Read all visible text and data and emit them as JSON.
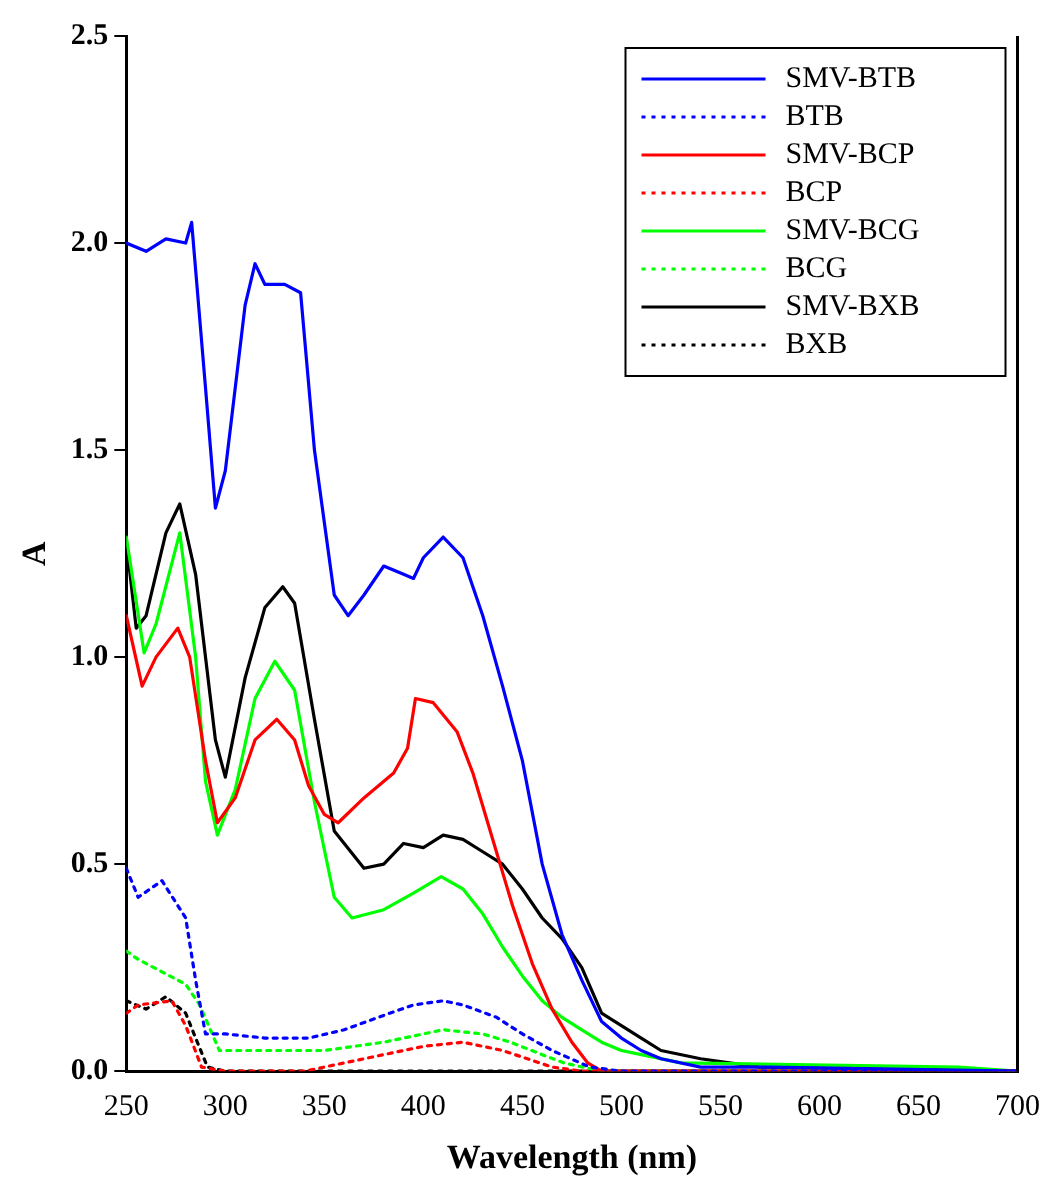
{
  "chart_data": {
    "type": "line",
    "xlabel": "Wavelength (nm)",
    "ylabel": "A",
    "xlim": [
      250,
      700
    ],
    "xticks": [
      250,
      300,
      350,
      400,
      450,
      500,
      550,
      600,
      650,
      700
    ],
    "ylim": [
      0,
      2.5
    ],
    "yticks": [
      {
        "value": 0,
        "label": "0.0"
      },
      {
        "value": 0.5,
        "label": "0.5"
      },
      {
        "value": 1,
        "label": "1.0"
      },
      {
        "value": 1.5,
        "label": "1.5"
      },
      {
        "value": 2,
        "label": "2.0"
      },
      {
        "value": 2.5,
        "label": "2.5"
      }
    ],
    "grid": false,
    "legend": "top right",
    "marker": "none",
    "series": [
      {
        "name": "SMV-BTB",
        "color": "#0000ff",
        "line_style": "solid",
        "x": [
          250,
          260,
          270,
          280,
          283,
          290,
          295,
          300,
          310,
          315,
          320,
          330,
          338,
          345,
          355,
          362,
          370,
          380,
          390,
          395,
          400,
          410,
          420,
          430,
          440,
          450,
          460,
          470,
          480,
          490,
          500,
          510,
          520,
          540,
          575,
          700
        ],
        "values": [
          2.0,
          1.98,
          2.01,
          2.0,
          2.05,
          1.65,
          1.36,
          1.45,
          1.85,
          1.95,
          1.9,
          1.9,
          1.88,
          1.5,
          1.15,
          1.1,
          1.15,
          1.22,
          1.2,
          1.19,
          1.24,
          1.29,
          1.24,
          1.1,
          0.93,
          0.75,
          0.5,
          0.33,
          0.22,
          0.12,
          0.08,
          0.05,
          0.03,
          0.01,
          0.01,
          0
        ]
      },
      {
        "name": "BTB",
        "color": "#0000ff",
        "line_style": "dotted",
        "x": [
          250,
          256,
          268,
          280,
          285,
          290,
          300,
          320,
          342,
          360,
          383,
          395,
          410,
          420,
          437,
          450,
          465,
          484,
          500,
          700
        ],
        "values": [
          0.49,
          0.42,
          0.46,
          0.37,
          0.22,
          0.09,
          0.09,
          0.08,
          0.08,
          0.1,
          0.14,
          0.16,
          0.17,
          0.16,
          0.13,
          0.09,
          0.05,
          0.01,
          0,
          0
        ]
      },
      {
        "name": "SMV-BCP",
        "color": "#ff0000",
        "line_style": "solid",
        "x": [
          250,
          258,
          265,
          276,
          282,
          290,
          296,
          305,
          315,
          326,
          335,
          342,
          350,
          357,
          370,
          385,
          392,
          396,
          405,
          417,
          425,
          435,
          445,
          455,
          465,
          475,
          483,
          490,
          700
        ],
        "values": [
          1.1,
          0.93,
          1.0,
          1.07,
          1.0,
          0.75,
          0.6,
          0.66,
          0.8,
          0.85,
          0.8,
          0.69,
          0.62,
          0.6,
          0.66,
          0.72,
          0.78,
          0.9,
          0.89,
          0.82,
          0.72,
          0.56,
          0.4,
          0.26,
          0.15,
          0.07,
          0.02,
          0,
          0
        ]
      },
      {
        "name": "BCP",
        "color": "#ff0000",
        "line_style": "dotted",
        "x": [
          250,
          256,
          273,
          280,
          288,
          300,
          340,
          370,
          400,
          420,
          440,
          465,
          480,
          700
        ],
        "values": [
          0.14,
          0.16,
          0.17,
          0.11,
          0.01,
          0,
          0,
          0.03,
          0.06,
          0.07,
          0.05,
          0.01,
          0,
          0
        ]
      },
      {
        "name": "SMV-BCG",
        "color": "#00ff00",
        "line_style": "solid",
        "x": [
          250,
          259,
          265,
          277,
          285,
          290,
          296,
          305,
          315,
          325,
          335,
          345,
          355,
          364,
          380,
          395,
          409,
          420,
          430,
          440,
          450,
          460,
          470,
          480,
          490,
          500,
          510,
          530,
          560,
          670,
          700
        ],
        "values": [
          1.29,
          1.01,
          1.08,
          1.3,
          1.0,
          0.7,
          0.57,
          0.68,
          0.9,
          0.99,
          0.92,
          0.65,
          0.42,
          0.37,
          0.39,
          0.43,
          0.47,
          0.44,
          0.38,
          0.3,
          0.23,
          0.17,
          0.13,
          0.1,
          0.07,
          0.05,
          0.04,
          0.02,
          null,
          0.01,
          0
        ]
      },
      {
        "name": "BCG",
        "color": "#00ff00",
        "line_style": "dotted",
        "x": [
          250,
          256,
          280,
          287,
          297,
          320,
          350,
          380,
          410,
          430,
          444,
          460,
          471,
          490,
          700
        ],
        "values": [
          0.29,
          0.27,
          0.21,
          0.16,
          0.05,
          0.05,
          0.05,
          0.07,
          0.1,
          0.09,
          0.07,
          0.04,
          0.02,
          0,
          0
        ]
      },
      {
        "name": "SMV-BXB",
        "color": "#000000",
        "line_style": "solid",
        "x": [
          250,
          255,
          260,
          270,
          277,
          285,
          295,
          300,
          310,
          320,
          329,
          335,
          345,
          355,
          370,
          380,
          390,
          400,
          410,
          420,
          430,
          440,
          450,
          460,
          470,
          480,
          490,
          500,
          510,
          520,
          540,
          570,
          700
        ],
        "values": [
          1.28,
          1.07,
          1.1,
          1.3,
          1.37,
          1.2,
          0.8,
          0.71,
          0.95,
          1.12,
          1.17,
          1.13,
          0.85,
          0.58,
          0.49,
          0.5,
          0.55,
          0.54,
          0.57,
          0.56,
          0.53,
          0.5,
          0.44,
          0.37,
          0.32,
          0.25,
          0.14,
          0.11,
          0.08,
          0.05,
          0.03,
          0.01,
          0
        ]
      },
      {
        "name": "BXB",
        "color": "#000000",
        "line_style": "dotted",
        "x": [
          250,
          260,
          270,
          280,
          285,
          291,
          300,
          700
        ],
        "values": [
          0.17,
          0.15,
          0.18,
          0.14,
          0.08,
          0.01,
          0,
          0
        ]
      }
    ]
  }
}
